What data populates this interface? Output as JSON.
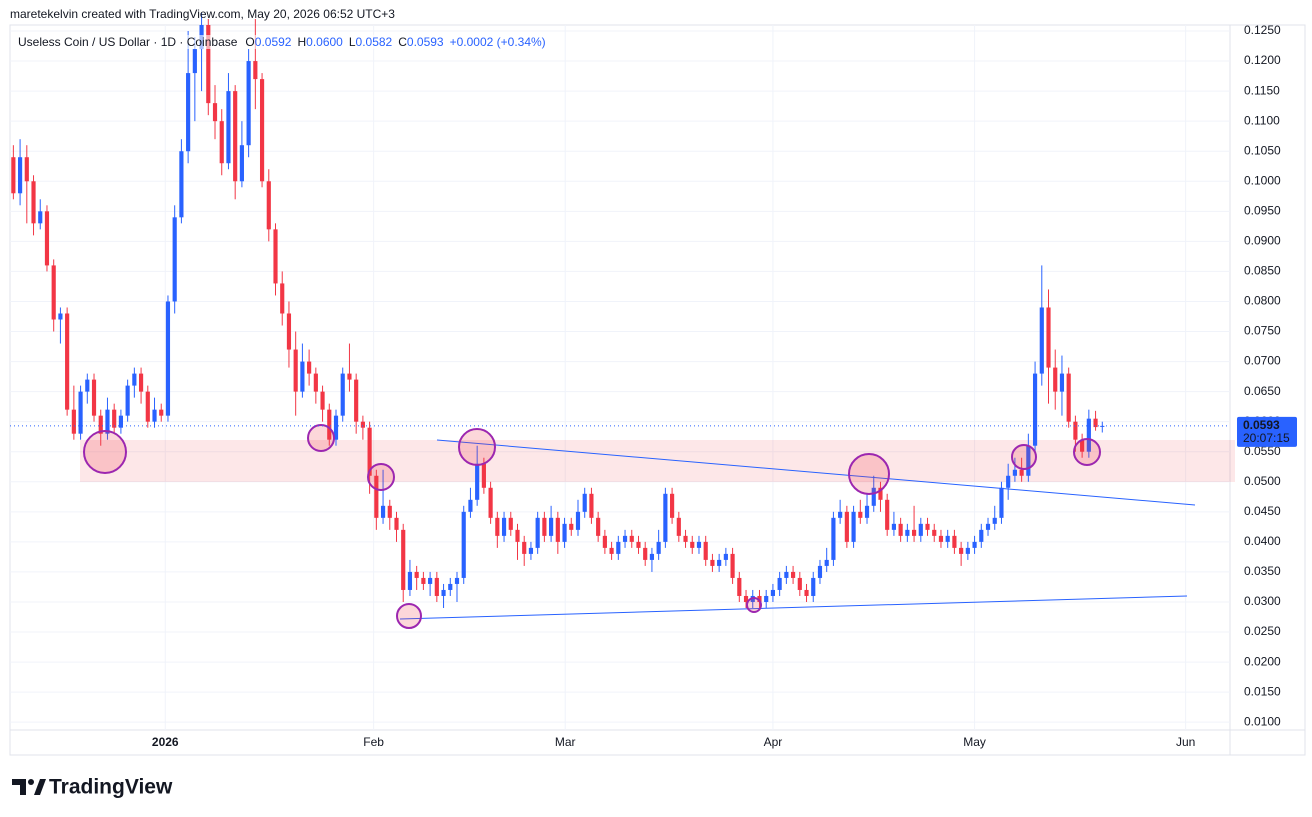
{
  "chart_data": {
    "type": "candlestick",
    "attribution": "maretekelvin created with TradingView.com, May 20, 2026 06:52 UTC+3",
    "title": "Useless Coin / US Dollar · 1D · Coinbase",
    "legend": [
      {
        "label": "O",
        "value": "0.0592"
      },
      {
        "label": "H",
        "value": "0.0600"
      },
      {
        "label": "L",
        "value": "0.0582"
      },
      {
        "label": "C",
        "value": "0.0593"
      }
    ],
    "change": "+0.0002 (+0.34%)",
    "price_label": "0.0593",
    "countdown": "20:07:15",
    "brand": "TradingView",
    "up_color": "#2962ff",
    "down_color": "#f23645",
    "grid": true,
    "xlim": [
      -0.5,
      181
    ],
    "xticks": [
      {
        "value": 22.6,
        "label": "2026"
      },
      {
        "value": 53.6,
        "label": "Feb"
      },
      {
        "value": 82.1,
        "label": "Mar"
      },
      {
        "value": 113,
        "label": "Apr"
      },
      {
        "value": 143,
        "label": "May"
      },
      {
        "value": 174.4,
        "label": "Jun"
      }
    ],
    "ylim": [
      0.0087,
      0.126
    ],
    "yticks": [
      {
        "value": 0.01,
        "label": "0.0100"
      },
      {
        "value": 0.015,
        "label": "0.0150"
      },
      {
        "value": 0.02,
        "label": "0.0200"
      },
      {
        "value": 0.025,
        "label": "0.0250"
      },
      {
        "value": 0.03,
        "label": "0.0300"
      },
      {
        "value": 0.035,
        "label": "0.0350"
      },
      {
        "value": 0.04,
        "label": "0.0400"
      },
      {
        "value": 0.045,
        "label": "0.0450"
      },
      {
        "value": 0.05,
        "label": "0.0500"
      },
      {
        "value": 0.055,
        "label": "0.0550"
      },
      {
        "value": 0.06,
        "label": "0.0600"
      },
      {
        "value": 0.065,
        "label": "0.0650"
      },
      {
        "value": 0.07,
        "label": "0.0700"
      },
      {
        "value": 0.075,
        "label": "0.0750"
      },
      {
        "value": 0.08,
        "label": "0.0800"
      },
      {
        "value": 0.085,
        "label": "0.0850"
      },
      {
        "value": 0.09,
        "label": "0.0900"
      },
      {
        "value": 0.095,
        "label": "0.0950"
      },
      {
        "value": 0.1,
        "label": "0.1000"
      },
      {
        "value": 0.105,
        "label": "0.1050"
      },
      {
        "value": 0.11,
        "label": "0.1100"
      },
      {
        "value": 0.115,
        "label": "0.1150"
      },
      {
        "value": 0.12,
        "label": "0.1200"
      },
      {
        "value": 0.125,
        "label": "0.1250"
      }
    ],
    "open": [
      0.104,
      0.098,
      0.104,
      0.1,
      0.093,
      0.095,
      0.086,
      0.077,
      0.078,
      0.062,
      0.058,
      0.065,
      0.067,
      0.061,
      0.058,
      0.062,
      0.059,
      0.061,
      0.066,
      0.068,
      0.065,
      0.06,
      0.062,
      0.061,
      0.08,
      0.094,
      0.105,
      0.118,
      0.122,
      0.126,
      0.113,
      0.11,
      0.103,
      0.115,
      0.1,
      0.106,
      0.12,
      0.117,
      0.1,
      0.092,
      0.083,
      0.078,
      0.072,
      0.065,
      0.07,
      0.068,
      0.065,
      0.062,
      0.057,
      0.061,
      0.068,
      0.067,
      0.06,
      0.059,
      0.051,
      0.044,
      0.046,
      0.044,
      0.042,
      0.032,
      0.035,
      0.034,
      0.033,
      0.034,
      0.031,
      0.032,
      0.033,
      0.034,
      0.045,
      0.047,
      0.053,
      0.049,
      0.044,
      0.041,
      0.044,
      0.042,
      0.04,
      0.038,
      0.039,
      0.044,
      0.041,
      0.044,
      0.04,
      0.043,
      0.042,
      0.045,
      0.048,
      0.044,
      0.041,
      0.039,
      0.038,
      0.04,
      0.041,
      0.04,
      0.039,
      0.037,
      0.038,
      0.04,
      0.048,
      0.044,
      0.041,
      0.04,
      0.039,
      0.04,
      0.037,
      0.036,
      0.037,
      0.038,
      0.034,
      0.031,
      0.03,
      0.031,
      0.03,
      0.031,
      0.032,
      0.034,
      0.035,
      0.034,
      0.032,
      0.031,
      0.034,
      0.036,
      0.037,
      0.044,
      0.045,
      0.04,
      0.045,
      0.044,
      0.046,
      0.049,
      0.047,
      0.042,
      0.043,
      0.041,
      0.042,
      0.041,
      0.043,
      0.042,
      0.041,
      0.04,
      0.041,
      0.039,
      0.038,
      0.039,
      0.04,
      0.042,
      0.043,
      0.044,
      0.049,
      0.051,
      0.052,
      0.051,
      0.056,
      0.068,
      0.079,
      0.069,
      0.065,
      0.068,
      0.06,
      0.057,
      0.055,
      0.0605,
      0.0592
    ],
    "high": [
      0.106,
      0.107,
      0.106,
      0.101,
      0.097,
      0.096,
      0.087,
      0.079,
      0.079,
      0.066,
      0.066,
      0.068,
      0.068,
      0.062,
      0.064,
      0.063,
      0.062,
      0.067,
      0.069,
      0.069,
      0.066,
      0.064,
      0.063,
      0.081,
      0.096,
      0.107,
      0.125,
      0.124,
      0.128,
      0.127,
      0.116,
      0.112,
      0.118,
      0.116,
      0.11,
      0.122,
      0.127,
      0.118,
      0.102,
      0.093,
      0.085,
      0.08,
      0.075,
      0.073,
      0.072,
      0.069,
      0.066,
      0.063,
      0.062,
      0.069,
      0.073,
      0.068,
      0.061,
      0.06,
      0.052,
      0.052,
      0.047,
      0.045,
      0.043,
      0.037,
      0.036,
      0.035,
      0.035,
      0.035,
      0.033,
      0.034,
      0.035,
      0.046,
      0.049,
      0.056,
      0.054,
      0.05,
      0.045,
      0.045,
      0.045,
      0.043,
      0.041,
      0.04,
      0.045,
      0.045,
      0.046,
      0.045,
      0.044,
      0.044,
      0.047,
      0.049,
      0.049,
      0.045,
      0.042,
      0.04,
      0.041,
      0.042,
      0.042,
      0.041,
      0.04,
      0.039,
      0.042,
      0.049,
      0.049,
      0.045,
      0.042,
      0.041,
      0.041,
      0.041,
      0.038,
      0.038,
      0.039,
      0.039,
      0.035,
      0.032,
      0.032,
      0.032,
      0.032,
      0.033,
      0.035,
      0.036,
      0.036,
      0.035,
      0.033,
      0.035,
      0.037,
      0.039,
      0.045,
      0.047,
      0.046,
      0.046,
      0.047,
      0.048,
      0.051,
      0.05,
      0.048,
      0.045,
      0.044,
      0.043,
      0.046,
      0.044,
      0.044,
      0.043,
      0.042,
      0.042,
      0.042,
      0.04,
      0.04,
      0.041,
      0.043,
      0.044,
      0.046,
      0.05,
      0.053,
      0.054,
      0.054,
      0.058,
      0.07,
      0.086,
      0.082,
      0.072,
      0.071,
      0.069,
      0.061,
      0.058,
      0.062,
      0.0618,
      0.06
    ],
    "low": [
      0.097,
      0.096,
      0.093,
      0.091,
      0.092,
      0.085,
      0.075,
      0.073,
      0.061,
      0.057,
      0.057,
      0.063,
      0.06,
      0.056,
      0.057,
      0.058,
      0.058,
      0.06,
      0.064,
      0.063,
      0.059,
      0.059,
      0.06,
      0.06,
      0.078,
      0.093,
      0.103,
      0.11,
      0.115,
      0.111,
      0.107,
      0.101,
      0.102,
      0.097,
      0.099,
      0.104,
      0.112,
      0.099,
      0.09,
      0.081,
      0.076,
      0.069,
      0.061,
      0.064,
      0.066,
      0.063,
      0.06,
      0.056,
      0.056,
      0.06,
      0.065,
      0.058,
      0.057,
      0.048,
      0.042,
      0.043,
      0.042,
      0.04,
      0.03,
      0.031,
      0.032,
      0.032,
      0.031,
      0.03,
      0.029,
      0.031,
      0.03,
      0.033,
      0.044,
      0.046,
      0.048,
      0.043,
      0.039,
      0.04,
      0.041,
      0.037,
      0.036,
      0.037,
      0.038,
      0.04,
      0.04,
      0.038,
      0.039,
      0.041,
      0.041,
      0.044,
      0.043,
      0.04,
      0.038,
      0.037,
      0.037,
      0.039,
      0.039,
      0.038,
      0.036,
      0.035,
      0.037,
      0.039,
      0.043,
      0.04,
      0.039,
      0.038,
      0.038,
      0.036,
      0.035,
      0.035,
      0.036,
      0.033,
      0.03,
      0.029,
      0.029,
      0.029,
      0.029,
      0.03,
      0.031,
      0.033,
      0.033,
      0.031,
      0.03,
      0.03,
      0.033,
      0.035,
      0.036,
      0.043,
      0.039,
      0.039,
      0.043,
      0.043,
      0.045,
      0.045,
      0.041,
      0.041,
      0.04,
      0.04,
      0.04,
      0.04,
      0.041,
      0.04,
      0.039,
      0.039,
      0.038,
      0.036,
      0.037,
      0.038,
      0.039,
      0.041,
      0.042,
      0.043,
      0.047,
      0.05,
      0.05,
      0.05,
      0.055,
      0.066,
      0.063,
      0.062,
      0.061,
      0.059,
      0.055,
      0.054,
      0.054,
      0.0585,
      0.0582
    ],
    "close": [
      0.098,
      0.104,
      0.1,
      0.093,
      0.095,
      0.086,
      0.077,
      0.078,
      0.062,
      0.058,
      0.065,
      0.067,
      0.061,
      0.058,
      0.062,
      0.059,
      0.061,
      0.066,
      0.068,
      0.065,
      0.06,
      0.062,
      0.061,
      0.08,
      0.094,
      0.105,
      0.118,
      0.122,
      0.126,
      0.113,
      0.11,
      0.103,
      0.115,
      0.1,
      0.106,
      0.12,
      0.117,
      0.1,
      0.092,
      0.083,
      0.078,
      0.072,
      0.065,
      0.07,
      0.068,
      0.065,
      0.062,
      0.057,
      0.061,
      0.068,
      0.067,
      0.06,
      0.059,
      0.051,
      0.044,
      0.046,
      0.044,
      0.042,
      0.032,
      0.035,
      0.034,
      0.033,
      0.034,
      0.031,
      0.032,
      0.033,
      0.034,
      0.045,
      0.047,
      0.053,
      0.049,
      0.044,
      0.041,
      0.044,
      0.042,
      0.04,
      0.038,
      0.039,
      0.044,
      0.041,
      0.044,
      0.04,
      0.043,
      0.042,
      0.045,
      0.048,
      0.044,
      0.041,
      0.039,
      0.038,
      0.04,
      0.041,
      0.04,
      0.039,
      0.037,
      0.038,
      0.04,
      0.048,
      0.044,
      0.041,
      0.04,
      0.039,
      0.04,
      0.037,
      0.036,
      0.037,
      0.038,
      0.034,
      0.031,
      0.03,
      0.031,
      0.03,
      0.031,
      0.032,
      0.034,
      0.035,
      0.034,
      0.032,
      0.031,
      0.034,
      0.036,
      0.037,
      0.044,
      0.045,
      0.04,
      0.045,
      0.044,
      0.046,
      0.049,
      0.047,
      0.042,
      0.043,
      0.041,
      0.042,
      0.041,
      0.043,
      0.042,
      0.041,
      0.04,
      0.041,
      0.039,
      0.038,
      0.039,
      0.04,
      0.042,
      0.043,
      0.044,
      0.049,
      0.051,
      0.052,
      0.051,
      0.056,
      0.068,
      0.079,
      0.069,
      0.065,
      0.068,
      0.06,
      0.057,
      0.055,
      0.0605,
      0.0591,
      0.0593
    ]
  }
}
